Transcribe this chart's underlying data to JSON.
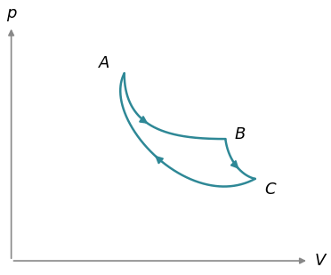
{
  "title": "",
  "xlabel": "V",
  "ylabel": "p",
  "background_color": "#ffffff",
  "curve_color": "#2e8896",
  "point_A": [
    0.38,
    0.8
  ],
  "point_B": [
    0.72,
    0.52
  ],
  "point_C": [
    0.82,
    0.35
  ],
  "label_A": "A",
  "label_B": "B",
  "label_C": "C",
  "figsize": [
    3.72,
    3.09
  ],
  "dpi": 100,
  "AB_ctrl1": [
    0.38,
    0.55
  ],
  "AB_ctrl2": [
    0.55,
    0.52
  ],
  "BC_ctrl1": [
    0.73,
    0.42
  ],
  "BC_ctrl2": [
    0.78,
    0.36
  ],
  "CA_ctrl1": [
    0.6,
    0.2
  ],
  "CA_ctrl2": [
    0.3,
    0.6
  ]
}
